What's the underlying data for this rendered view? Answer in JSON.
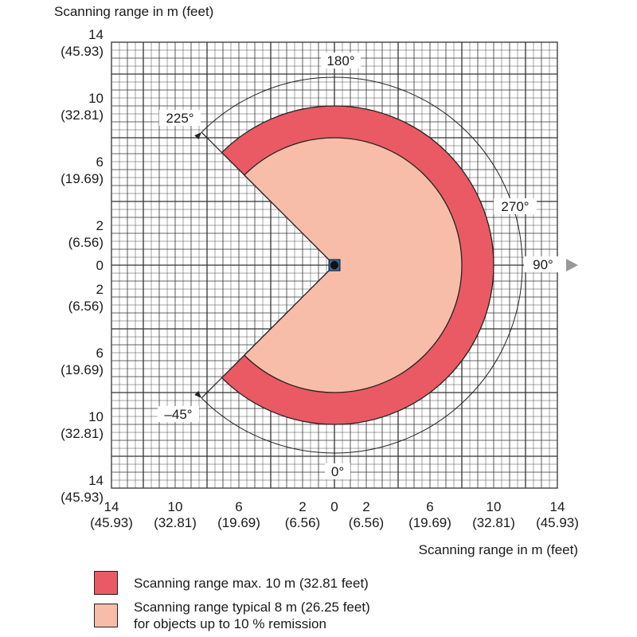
{
  "title_y": "Scanning range in m (feet)",
  "title_x": "Scanning range in m (feet)",
  "y_ticks": [
    {
      "m": "14",
      "ft": "(45.93)"
    },
    {
      "m": "10",
      "ft": "(32.81)"
    },
    {
      "m": "6",
      "ft": "(19.69)"
    },
    {
      "m": "2",
      "ft": "(6.56)"
    },
    {
      "m": "0",
      "ft": ""
    },
    {
      "m": "2",
      "ft": "(6.56)"
    },
    {
      "m": "6",
      "ft": "(19.69)"
    },
    {
      "m": "10",
      "ft": "(32.81)"
    },
    {
      "m": "14",
      "ft": "(45.93)"
    }
  ],
  "x_ticks": [
    {
      "m": "14",
      "ft": "(45.93)"
    },
    {
      "m": "10",
      "ft": "(32.81)"
    },
    {
      "m": "6",
      "ft": "(19.69)"
    },
    {
      "m": "2",
      "ft": "(6.56)"
    },
    {
      "m": "0",
      "ft": ""
    },
    {
      "m": "2",
      "ft": "(6.56)"
    },
    {
      "m": "6",
      "ft": "(19.69)"
    },
    {
      "m": "10",
      "ft": "(32.81)"
    },
    {
      "m": "14",
      "ft": "(45.93)"
    }
  ],
  "angles": {
    "a180": "180°",
    "a225": "225°",
    "a270": "270°",
    "a90": "90°",
    "a0": "0°",
    "aneg45": "–45°"
  },
  "scan": {
    "max_range_m": 10,
    "typical_range_m": 8,
    "start_angle_deg": -45,
    "end_angle_deg": 225
  },
  "colors": {
    "max": "#e95a64",
    "typical": "#f8bda8",
    "grid": "#333333",
    "arrow": "#999999"
  },
  "legend": {
    "max_label": "Scanning range max. 10 m (32.81 feet)",
    "typical_line1": "Scanning range typical 8 m (26.25 feet)",
    "typical_line2": "for objects up to 10 % remission"
  }
}
